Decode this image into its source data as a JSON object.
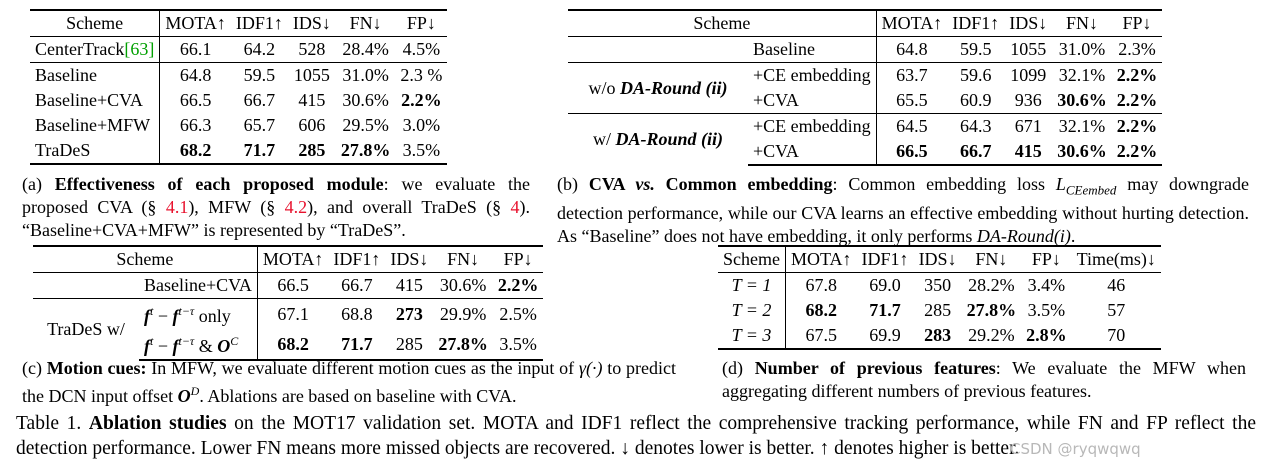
{
  "table_a": {
    "headers": [
      "Scheme",
      "MOTA↑",
      "IDF1↑",
      "IDS↓",
      "FN↓",
      "FP↓"
    ],
    "centertrack": {
      "name": "CenterTrack",
      "ref": "[63]",
      "values": [
        "66.1",
        "64.2",
        "528",
        "28.4%",
        "4.5%"
      ]
    },
    "rows": [
      {
        "name": "Baseline",
        "values": [
          "64.8",
          "59.5",
          "1055",
          "31.0%",
          "2.3 %"
        ]
      },
      {
        "name": "Baseline+CVA",
        "values": [
          "66.5",
          "66.7",
          "415",
          "30.6%",
          "2.2%"
        ]
      },
      {
        "name": "Baseline+MFW",
        "values": [
          "66.3",
          "65.7",
          "606",
          "29.5%",
          "3.0%"
        ]
      },
      {
        "name": "TraDeS",
        "values": [
          "68.2",
          "71.7",
          "285",
          "27.8%",
          "3.5%"
        ]
      }
    ],
    "caption": {
      "label": "(a) ",
      "bold": "Effectiveness of each proposed module",
      "t1": ": we evaluate the proposed CVA (§ ",
      "r1": "4.1",
      "t2": "), MFW (§ ",
      "r2": "4.2",
      "t3": "), and overall TraDeS (§ ",
      "r3": "4",
      "t4": "). “Baseline+CVA+MFW” is represented by “TraDeS”."
    }
  },
  "table_b": {
    "headers": [
      "Scheme",
      "MOTA↑",
      "IDF1↑",
      "IDS↓",
      "FN↓",
      "FP↓"
    ],
    "baseline": {
      "name": "Baseline",
      "values": [
        "64.8",
        "59.5",
        "1055",
        "31.0%",
        "2.3%"
      ]
    },
    "group1": {
      "prefix": "w/o ",
      "tag": "DA-Round (ii)",
      "rows": [
        {
          "name": "+CE embedding",
          "values": [
            "63.7",
            "59.6",
            "1099",
            "32.1%",
            "2.2%"
          ]
        },
        {
          "name": "+CVA",
          "values": [
            "65.5",
            "60.9",
            "936",
            "30.6%",
            "2.2%"
          ]
        }
      ]
    },
    "group2": {
      "prefix": "w/ ",
      "tag": "DA-Round (ii)",
      "rows": [
        {
          "name": "+CE embedding",
          "values": [
            "64.5",
            "64.3",
            "671",
            "32.1%",
            "2.2%"
          ]
        },
        {
          "name": "+CVA",
          "values": [
            "66.5",
            "66.7",
            "415",
            "30.6%",
            "2.2%"
          ]
        }
      ]
    },
    "caption": {
      "label": "(b) ",
      "bold1": "CVA ",
      "vs": "vs.",
      "bold2": " Common embedding",
      "t1": ": Common embedding loss ",
      "loss": "L",
      "loss_sub": "CEembed",
      "t2": " may downgrade detection performance, while our CVA learns an effective embedding without hurting detection. As “Baseline” does not have embedding, it only performs ",
      "t3": "DA-Round(i)",
      "t4": "."
    }
  },
  "table_c": {
    "headers": [
      "Scheme",
      "MOTA↑",
      "IDF1↑",
      "IDS↓",
      "FN↓",
      "FP↓"
    ],
    "baseline": {
      "name": "Baseline+CVA",
      "values": [
        "66.5",
        "66.7",
        "415",
        "30.6%",
        "2.2%"
      ]
    },
    "group_label": "TraDeS w/",
    "row1": {
      "f": "f",
      "sup1": "t",
      "minus": " − ",
      "sup2": "t−τ",
      "suffix": " only",
      "values": [
        "67.1",
        "68.8",
        "273",
        "29.9%",
        "2.5%"
      ]
    },
    "row2": {
      "f": "f",
      "sup1": "t",
      "minus": " − ",
      "sup2": "t−τ",
      "amp": " & ",
      "o": "O",
      "osup": "C",
      "values": [
        "68.2",
        "71.7",
        "285",
        "27.8%",
        "3.5%"
      ]
    },
    "caption": {
      "label": "(c) ",
      "bold": "Motion cues:",
      "t1": " In MFW, we evaluate different motion cues as the input of ",
      "gamma": "γ(·)",
      "t2": " to predict the DCN input offset ",
      "o": "O",
      "osup": "D",
      "t3": ". Ablations are based on baseline with CVA."
    }
  },
  "table_d": {
    "headers": [
      "Scheme",
      "MOTA↑",
      "IDF1↑",
      "IDS↓",
      "FN↓",
      "FP↓",
      "Time(ms)↓"
    ],
    "rows": [
      {
        "name": "T = 1",
        "values": [
          "67.8",
          "69.0",
          "350",
          "28.2%",
          "3.4%",
          "46"
        ]
      },
      {
        "name": "T = 2",
        "values": [
          "68.2",
          "71.7",
          "285",
          "27.8%",
          "3.5%",
          "57"
        ]
      },
      {
        "name": "T = 3",
        "values": [
          "67.5",
          "69.9",
          "283",
          "29.2%",
          "2.8%",
          "70"
        ]
      }
    ],
    "caption": {
      "label": "(d) ",
      "bold": "Number of previous features",
      "t1": ": We evaluate the MFW when aggregating different numbers of previous features."
    }
  },
  "main_caption": {
    "label": "Table 1. ",
    "bold": "Ablation studies",
    "text": " on the MOT17 validation set. MOTA and IDF1 reflect the comprehensive tracking performance, while FN and FP reflect the detection performance. Lower FN means more missed objects are recovered. ↓ denotes lower is better. ↑ denotes higher is better."
  },
  "watermark": "CSDN @ryqwqwq"
}
